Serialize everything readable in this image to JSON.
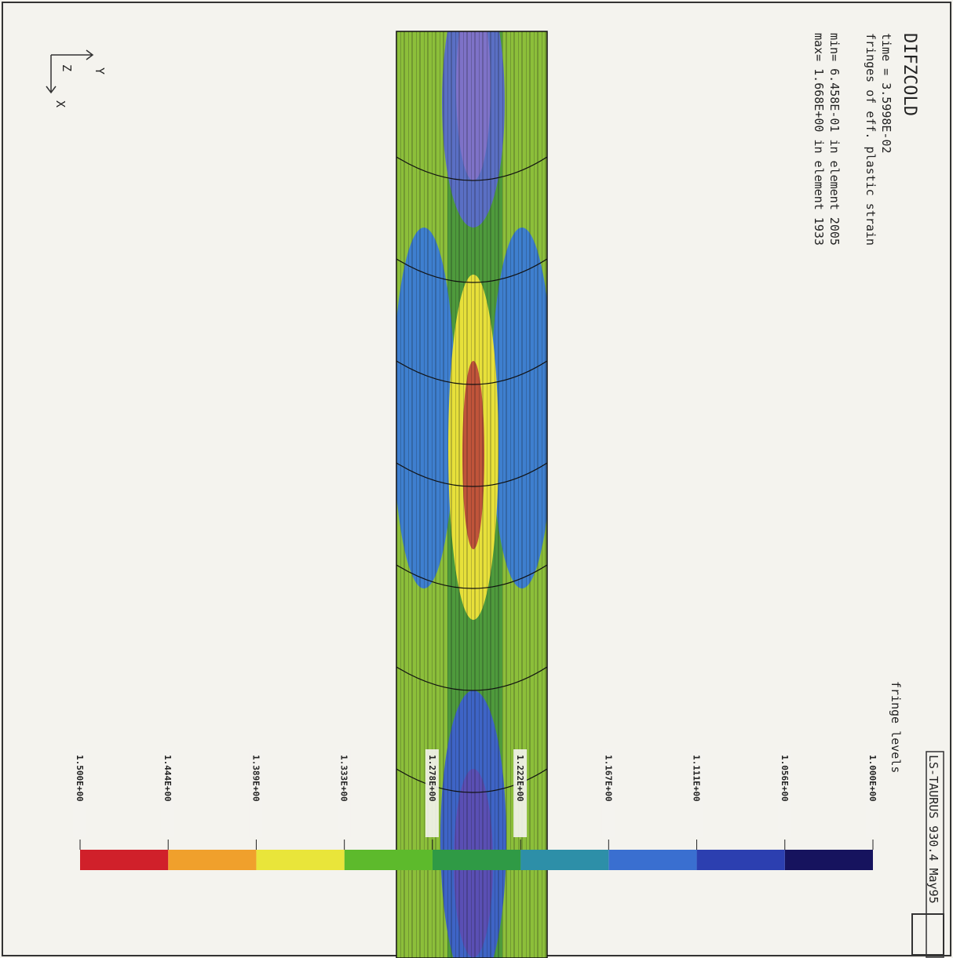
{
  "header": {
    "title": "DIFZCOLD",
    "time": "time =  3.5998E-02",
    "quantity": "fringes of eff. plastic strain",
    "min": "min= 6.458E-01 in element 2005",
    "max": "max= 1.668E+00 in element 1933"
  },
  "triad": {
    "y": "Y",
    "z": "Z",
    "x": "X"
  },
  "legend": {
    "title": "fringe levels",
    "levels": [
      "1.000E+00",
      "1.056E+00",
      "1.111E+00",
      "1.167E+00",
      "1.222E+00",
      "1.278E+00",
      "1.333E+00",
      "1.389E+00",
      "1.444E+00",
      "1.500E+00"
    ]
  },
  "footer": "LS-TAURUS 930.4  May95"
}
